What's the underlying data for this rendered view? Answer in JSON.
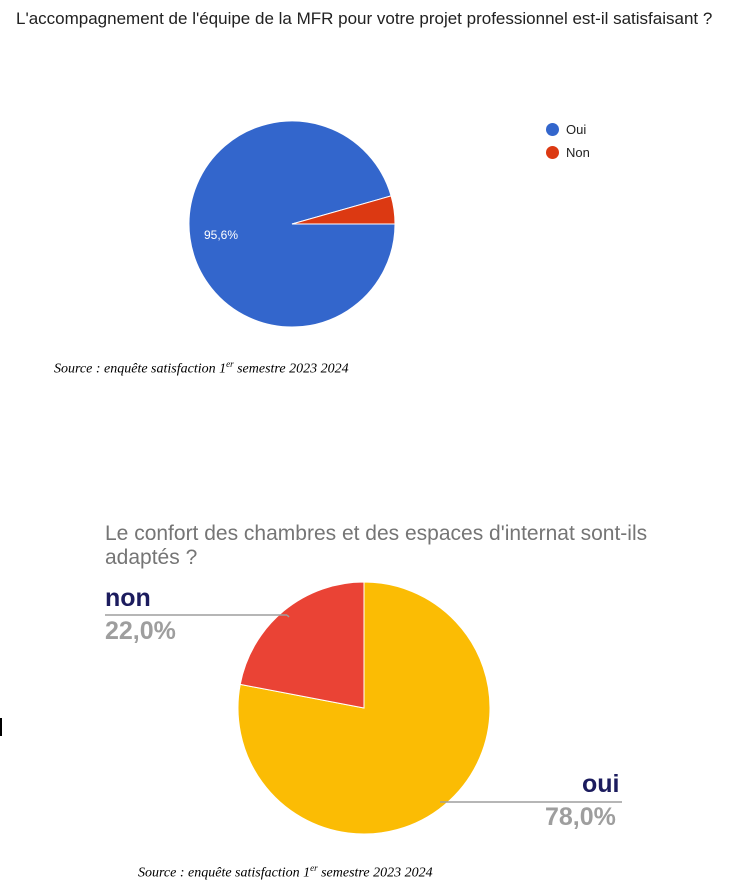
{
  "chart_data": [
    {
      "type": "pie",
      "title": "L'accompagnement de l'équipe de la MFR pour votre projet professionnel est-il satisfaisant ?",
      "slices": [
        {
          "label": "Oui",
          "value": 95.6,
          "color": "#3366cc"
        },
        {
          "label": "Non",
          "value": 4.4,
          "color": "#dc3912"
        }
      ],
      "data_labels": [
        "95,6%"
      ],
      "legend": [
        "Oui",
        "Non"
      ],
      "legend_position": "right"
    },
    {
      "type": "pie",
      "title": "Le confort des chambres et des espaces d'internat sont-ils adaptés ?",
      "slices": [
        {
          "label": "oui",
          "value": 78.0,
          "color": "#fbbc04"
        },
        {
          "label": "non",
          "value": 22.0,
          "color": "#ea4335"
        }
      ],
      "data_labels": [
        "78,0%",
        "22,0%"
      ],
      "legend_position": "callouts"
    }
  ],
  "sources": {
    "prefix": "Source : enquête satisfaction 1",
    "sup": "er",
    "suffix": " semestre 2023 2024"
  }
}
